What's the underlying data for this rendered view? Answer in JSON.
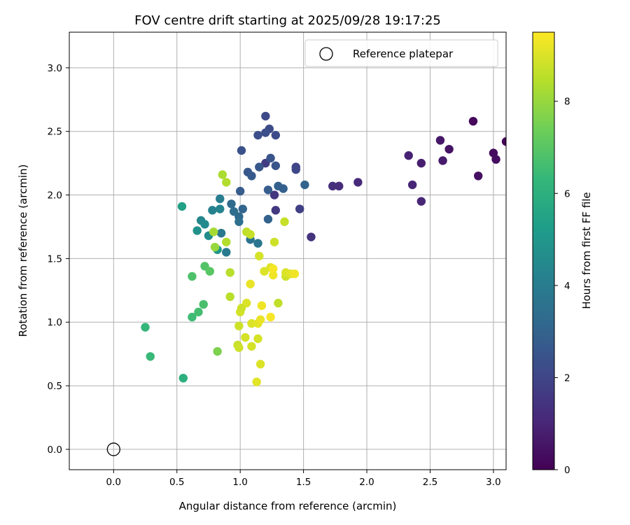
{
  "chart_data": {
    "type": "scatter",
    "title": "FOV centre drift starting at 2025/09/28 19:17:25",
    "xlabel": "Angular distance from reference (arcmin)",
    "ylabel": "Rotation from reference (arcmin)",
    "xlim": [
      -0.35,
      3.1
    ],
    "ylim": [
      -0.16,
      3.28
    ],
    "xticks": [
      "0.0",
      "0.5",
      "1.0",
      "1.5",
      "2.0",
      "2.5",
      "3.0"
    ],
    "yticks": [
      "0.0",
      "0.5",
      "1.0",
      "1.5",
      "2.0",
      "2.5",
      "3.0"
    ],
    "grid": true,
    "legend": {
      "label": "Reference platepar",
      "location": "upper right"
    },
    "reference_point": {
      "x": 0.0,
      "y": 0.0
    },
    "colorbar": {
      "label": "Hours from first FF file",
      "range": [
        0,
        9.5
      ],
      "ticks": [
        "0",
        "2",
        "4",
        "6",
        "8"
      ],
      "colormap": "viridis",
      "stops": [
        "#440154",
        "#482878",
        "#3e4989",
        "#31688e",
        "#26828e",
        "#1f9e89",
        "#35b779",
        "#6ece58",
        "#b5de2b",
        "#fde725"
      ]
    },
    "series": [
      {
        "name": "FOV centre drift",
        "points": [
          {
            "x": 3.1,
            "y": 2.42,
            "h": 0.1
          },
          {
            "x": 2.84,
            "y": 2.58,
            "h": 0.2
          },
          {
            "x": 3.0,
            "y": 2.33,
            "h": 0.3
          },
          {
            "x": 3.02,
            "y": 2.28,
            "h": 0.35
          },
          {
            "x": 2.88,
            "y": 2.15,
            "h": 0.4
          },
          {
            "x": 2.65,
            "y": 2.36,
            "h": 0.5
          },
          {
            "x": 2.58,
            "y": 2.43,
            "h": 0.6
          },
          {
            "x": 2.6,
            "y": 2.27,
            "h": 0.7
          },
          {
            "x": 2.43,
            "y": 2.25,
            "h": 0.8
          },
          {
            "x": 2.33,
            "y": 2.31,
            "h": 0.9
          },
          {
            "x": 2.36,
            "y": 2.08,
            "h": 1.0
          },
          {
            "x": 2.43,
            "y": 1.95,
            "h": 1.0
          },
          {
            "x": 1.93,
            "y": 2.1,
            "h": 1.1
          },
          {
            "x": 1.78,
            "y": 2.07,
            "h": 1.2
          },
          {
            "x": 1.73,
            "y": 2.07,
            "h": 1.3
          },
          {
            "x": 1.56,
            "y": 1.67,
            "h": 1.4
          },
          {
            "x": 1.27,
            "y": 2.0,
            "h": 1.5
          },
          {
            "x": 1.28,
            "y": 1.88,
            "h": 1.6
          },
          {
            "x": 1.2,
            "y": 2.25,
            "h": 1.7
          },
          {
            "x": 1.47,
            "y": 1.89,
            "h": 1.8
          },
          {
            "x": 1.44,
            "y": 2.22,
            "h": 1.9
          },
          {
            "x": 1.44,
            "y": 2.2,
            "h": 2.0
          },
          {
            "x": 1.2,
            "y": 2.62,
            "h": 2.1
          },
          {
            "x": 1.23,
            "y": 2.52,
            "h": 2.2
          },
          {
            "x": 1.28,
            "y": 2.47,
            "h": 2.2
          },
          {
            "x": 1.2,
            "y": 2.49,
            "h": 2.3
          },
          {
            "x": 1.14,
            "y": 2.47,
            "h": 2.3
          },
          {
            "x": 1.01,
            "y": 2.35,
            "h": 2.4
          },
          {
            "x": 1.24,
            "y": 2.29,
            "h": 2.5
          },
          {
            "x": 1.28,
            "y": 2.23,
            "h": 2.5
          },
          {
            "x": 1.15,
            "y": 2.22,
            "h": 2.6
          },
          {
            "x": 1.06,
            "y": 2.18,
            "h": 2.6
          },
          {
            "x": 1.09,
            "y": 2.15,
            "h": 2.7
          },
          {
            "x": 1.0,
            "y": 2.03,
            "h": 2.8
          },
          {
            "x": 1.22,
            "y": 2.04,
            "h": 2.8
          },
          {
            "x": 1.3,
            "y": 2.07,
            "h": 2.9
          },
          {
            "x": 1.34,
            "y": 2.05,
            "h": 2.9
          },
          {
            "x": 1.51,
            "y": 2.08,
            "h": 3.0
          },
          {
            "x": 1.22,
            "y": 1.81,
            "h": 3.0
          },
          {
            "x": 1.02,
            "y": 1.89,
            "h": 3.1
          },
          {
            "x": 0.99,
            "y": 1.83,
            "h": 3.2
          },
          {
            "x": 0.93,
            "y": 1.93,
            "h": 3.3
          },
          {
            "x": 0.95,
            "y": 1.87,
            "h": 3.4
          },
          {
            "x": 0.99,
            "y": 1.79,
            "h": 3.5
          },
          {
            "x": 1.08,
            "y": 1.65,
            "h": 3.6
          },
          {
            "x": 1.14,
            "y": 1.62,
            "h": 3.7
          },
          {
            "x": 0.85,
            "y": 1.7,
            "h": 3.8
          },
          {
            "x": 0.89,
            "y": 1.55,
            "h": 3.9
          },
          {
            "x": 0.84,
            "y": 1.97,
            "h": 4.0
          },
          {
            "x": 0.78,
            "y": 1.88,
            "h": 4.2
          },
          {
            "x": 0.84,
            "y": 1.89,
            "h": 4.3
          },
          {
            "x": 0.69,
            "y": 1.8,
            "h": 4.4
          },
          {
            "x": 0.72,
            "y": 1.77,
            "h": 4.5
          },
          {
            "x": 0.75,
            "y": 1.68,
            "h": 4.6
          },
          {
            "x": 0.66,
            "y": 1.72,
            "h": 4.8
          },
          {
            "x": 0.82,
            "y": 1.57,
            "h": 5.0
          },
          {
            "x": 0.54,
            "y": 1.91,
            "h": 5.4
          },
          {
            "x": 0.55,
            "y": 0.56,
            "h": 6.0
          },
          {
            "x": 0.25,
            "y": 0.96,
            "h": 6.3
          },
          {
            "x": 0.29,
            "y": 0.73,
            "h": 6.4
          },
          {
            "x": 0.62,
            "y": 1.04,
            "h": 6.5
          },
          {
            "x": 0.67,
            "y": 1.08,
            "h": 6.6
          },
          {
            "x": 0.71,
            "y": 1.14,
            "h": 6.7
          },
          {
            "x": 0.62,
            "y": 1.36,
            "h": 6.8
          },
          {
            "x": 0.72,
            "y": 1.44,
            "h": 6.9
          },
          {
            "x": 0.76,
            "y": 1.4,
            "h": 7.0
          },
          {
            "x": 0.82,
            "y": 0.77,
            "h": 7.6
          },
          {
            "x": 0.8,
            "y": 1.59,
            "h": 8.0
          },
          {
            "x": 0.79,
            "y": 1.71,
            "h": 8.2
          },
          {
            "x": 0.86,
            "y": 2.16,
            "h": 8.3
          },
          {
            "x": 0.89,
            "y": 2.1,
            "h": 8.4
          },
          {
            "x": 0.89,
            "y": 1.63,
            "h": 8.4
          },
          {
            "x": 0.92,
            "y": 1.39,
            "h": 8.5
          },
          {
            "x": 0.92,
            "y": 1.2,
            "h": 8.5
          },
          {
            "x": 1.05,
            "y": 1.71,
            "h": 8.6
          },
          {
            "x": 1.08,
            "y": 1.69,
            "h": 8.7
          },
          {
            "x": 1.27,
            "y": 1.63,
            "h": 8.8
          },
          {
            "x": 1.15,
            "y": 1.52,
            "h": 8.9
          },
          {
            "x": 1.19,
            "y": 1.4,
            "h": 9.0
          },
          {
            "x": 1.24,
            "y": 1.43,
            "h": 9.0
          },
          {
            "x": 1.35,
            "y": 1.79,
            "h": 8.7
          },
          {
            "x": 1.3,
            "y": 1.15,
            "h": 8.6
          },
          {
            "x": 1.36,
            "y": 1.36,
            "h": 8.8
          },
          {
            "x": 1.36,
            "y": 1.39,
            "h": 9.0
          },
          {
            "x": 1.4,
            "y": 1.38,
            "h": 9.1
          },
          {
            "x": 1.43,
            "y": 1.38,
            "h": 9.3
          },
          {
            "x": 1.26,
            "y": 1.37,
            "h": 9.3
          },
          {
            "x": 1.26,
            "y": 1.42,
            "h": 9.4
          },
          {
            "x": 1.08,
            "y": 1.3,
            "h": 9.2
          },
          {
            "x": 1.05,
            "y": 1.15,
            "h": 9.0
          },
          {
            "x": 1.0,
            "y": 1.08,
            "h": 8.9
          },
          {
            "x": 1.01,
            "y": 1.11,
            "h": 8.8
          },
          {
            "x": 0.99,
            "y": 0.97,
            "h": 8.8
          },
          {
            "x": 1.04,
            "y": 0.88,
            "h": 8.9
          },
          {
            "x": 1.09,
            "y": 0.99,
            "h": 9.0
          },
          {
            "x": 1.14,
            "y": 0.99,
            "h": 9.1
          },
          {
            "x": 1.16,
            "y": 1.02,
            "h": 9.2
          },
          {
            "x": 1.17,
            "y": 1.13,
            "h": 9.3
          },
          {
            "x": 1.24,
            "y": 1.04,
            "h": 9.4
          },
          {
            "x": 0.98,
            "y": 0.82,
            "h": 8.7
          },
          {
            "x": 0.99,
            "y": 0.8,
            "h": 8.8
          },
          {
            "x": 1.09,
            "y": 0.81,
            "h": 8.9
          },
          {
            "x": 1.14,
            "y": 0.87,
            "h": 8.9
          },
          {
            "x": 1.16,
            "y": 0.67,
            "h": 9.0
          },
          {
            "x": 1.13,
            "y": 0.53,
            "h": 9.1
          }
        ]
      }
    ]
  }
}
